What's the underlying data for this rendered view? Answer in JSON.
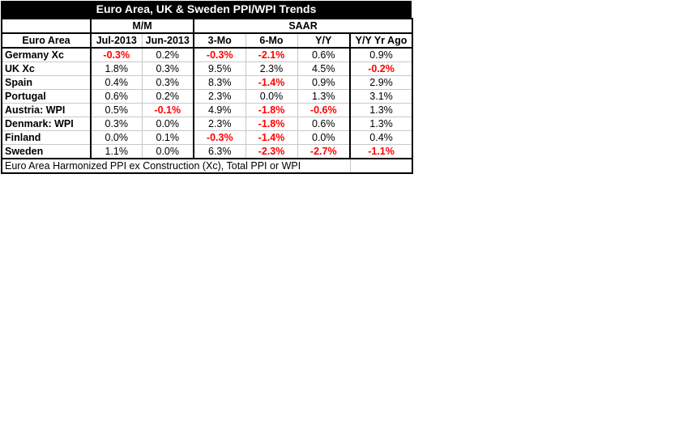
{
  "title": "Euro Area, UK & Sweden PPI/WPI Trends",
  "groups": {
    "mm": "M/M",
    "saar": "SAAR"
  },
  "headers": [
    "Euro Area",
    "Jul-2013",
    "Jun-2013",
    "3-Mo",
    "6-Mo",
    "Y/Y",
    "Y/Y Yr Ago"
  ],
  "rows": [
    {
      "label": "Germany Xc",
      "values": [
        "-0.3%",
        "0.2%",
        "-0.3%",
        "-2.1%",
        "0.6%",
        "0.9%"
      ]
    },
    {
      "label": "UK Xc",
      "values": [
        "1.8%",
        "0.3%",
        "9.5%",
        "2.3%",
        "4.5%",
        "-0.2%"
      ]
    },
    {
      "label": "Spain",
      "values": [
        "0.4%",
        "0.3%",
        "8.3%",
        "-1.4%",
        "0.9%",
        "2.9%"
      ]
    },
    {
      "label": "Portugal",
      "values": [
        "0.6%",
        "0.2%",
        "2.3%",
        "0.0%",
        "1.3%",
        "3.1%"
      ]
    },
    {
      "label": "Austria: WPI",
      "values": [
        "0.5%",
        "-0.1%",
        "4.9%",
        "-1.8%",
        "-0.6%",
        "1.3%"
      ]
    },
    {
      "label": "Denmark: WPI",
      "values": [
        "0.3%",
        "0.0%",
        "2.3%",
        "-1.8%",
        "0.6%",
        "1.3%"
      ]
    },
    {
      "label": "Finland",
      "values": [
        "0.0%",
        "0.1%",
        "-0.3%",
        "-1.4%",
        "0.0%",
        "0.4%"
      ]
    },
    {
      "label": "Sweden",
      "values": [
        "1.1%",
        "0.0%",
        "6.3%",
        "-2.3%",
        "-2.7%",
        "-1.1%"
      ]
    }
  ],
  "footnote": "Euro Area Harmonized PPI ex Construction (Xc), Total PPI or WPI",
  "colors": {
    "negative": "#ff0000",
    "title_bg": "#000000",
    "title_fg": "#ffffff"
  }
}
